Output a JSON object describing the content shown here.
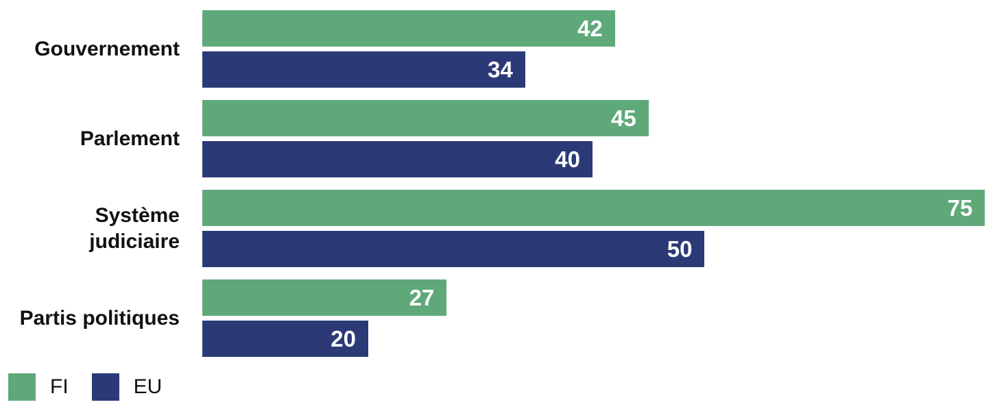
{
  "chart_data": {
    "type": "bar",
    "orientation": "horizontal",
    "title": "",
    "xlabel": "",
    "ylabel": "",
    "grid": false,
    "axes_visible": false,
    "value_labels": "inside-end, white, bold",
    "legend_position": "bottom-left",
    "categories": [
      "Gouvernement",
      "Parlement",
      "Système judiciaire",
      "Partis politiques"
    ],
    "series": [
      {
        "name": "FI",
        "color": "#5fa87a",
        "values": [
          42,
          45,
          75,
          27
        ]
      },
      {
        "name": "EU",
        "color": "#2b3a77",
        "values": [
          34,
          40,
          50,
          20
        ]
      }
    ]
  },
  "legend": {
    "items": [
      {
        "label": "FI",
        "color": "#5fa87a"
      },
      {
        "label": "EU",
        "color": "#2b3a77"
      }
    ]
  },
  "colors": {
    "background": "#ffffff",
    "text": "#111111",
    "bar_value_text": "#ffffff"
  }
}
